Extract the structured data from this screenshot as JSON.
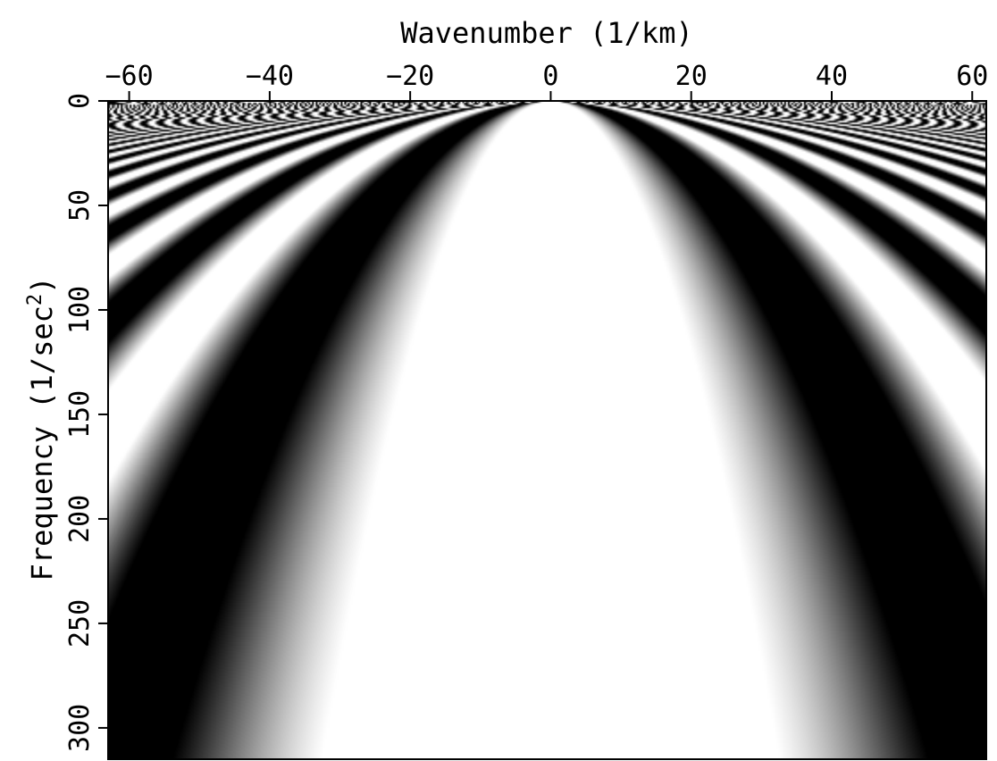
{
  "chart_data": {
    "type": "heatmap",
    "title": "",
    "xlabel": "Wavenumber (1/km)",
    "ylabel_main": "Frequency (1/sec",
    "ylabel_sup": "2",
    "ylabel_end": ")",
    "x_axis_position": "top",
    "y_axis_inverted": true,
    "xlim": [
      -63,
      62
    ],
    "ylim": [
      0,
      315
    ],
    "x_ticks": [
      -60,
      -40,
      -20,
      0,
      20,
      40,
      60
    ],
    "x_tick_labels": [
      "−60",
      "−40",
      "−20",
      "0",
      "20",
      "40",
      "60"
    ],
    "y_ticks": [
      0,
      50,
      100,
      150,
      200,
      250,
      300
    ],
    "y_tick_labels": [
      "0",
      "50",
      "100",
      "150",
      "200",
      "250",
      "300"
    ],
    "colormap": "grayscale",
    "low_color": "#000000",
    "high_color": "#ffffff",
    "pattern": "oscillating fringes converging toward the apex at wavenumber 0, frequency 0; a wide white band centered at wavenumber 0 widens with frequency",
    "grid": false,
    "legend": "none"
  }
}
